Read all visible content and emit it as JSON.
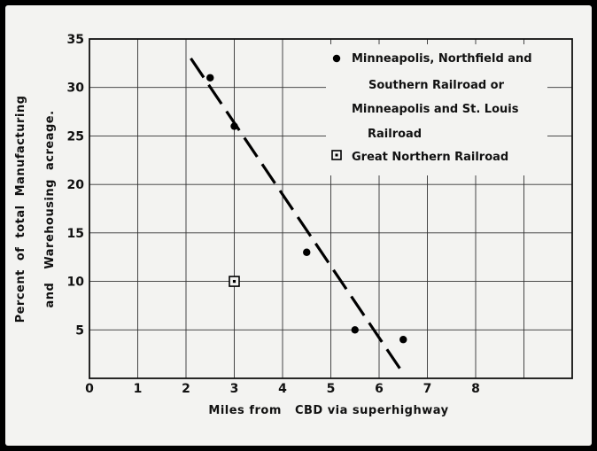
{
  "chart_data": {
    "type": "scatter",
    "xlabel": "Miles from   CBD via superhighway",
    "ylabel_line1": "Percent  of  total  Manufacturing",
    "ylabel_line2": "and   Warehousing  acreage.",
    "xlim": [
      0,
      10
    ],
    "ylim": [
      0,
      35
    ],
    "x_ticks": [
      0,
      1,
      2,
      3,
      4,
      5,
      6,
      7,
      8
    ],
    "y_ticks": [
      5,
      10,
      15,
      20,
      25,
      30,
      35
    ],
    "grid": true,
    "legend_position": "top-right",
    "series": [
      {
        "name": "Minneapolis, Northfield and Southern Railroad or Minneapolis and St. Louis Railroad",
        "legend_lines": [
          "Minneapolis, Northfield  and",
          "Southern Railroad  or",
          "Minneapolis and  St. Louis",
          "Railroad"
        ],
        "marker": "filled-circle",
        "points": [
          {
            "x": 2.5,
            "y": 31
          },
          {
            "x": 3.0,
            "y": 26
          },
          {
            "x": 4.5,
            "y": 13
          },
          {
            "x": 5.5,
            "y": 5
          },
          {
            "x": 6.5,
            "y": 4
          }
        ]
      },
      {
        "name": "Great Northern Railroad",
        "legend_lines": [
          "Great  Northern  Railroad"
        ],
        "marker": "dotted-square",
        "points": [
          {
            "x": 3.0,
            "y": 10
          }
        ]
      }
    ],
    "trend_line": {
      "style": "dashed",
      "from": {
        "x": 2.1,
        "y": 33
      },
      "to": {
        "x": 6.5,
        "y": 0.5
      }
    }
  }
}
